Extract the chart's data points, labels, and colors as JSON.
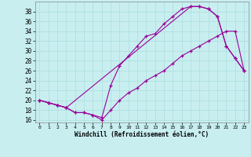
{
  "xlabel": "Windchill (Refroidissement éolien,°C)",
  "bg_color": "#c8eef0",
  "line_color": "#990099",
  "grid_color": "#aadddd",
  "ylim": [
    15.5,
    40
  ],
  "xlim": [
    -0.5,
    23.5
  ],
  "yticks": [
    16,
    18,
    20,
    22,
    24,
    26,
    28,
    30,
    32,
    34,
    36,
    38
  ],
  "xticks": [
    0,
    1,
    2,
    3,
    4,
    5,
    6,
    7,
    8,
    9,
    10,
    11,
    12,
    13,
    14,
    15,
    16,
    17,
    18,
    19,
    20,
    21,
    22,
    23
  ],
  "line1_x": [
    0,
    1,
    2,
    3,
    4,
    5,
    6,
    7,
    8,
    9,
    10,
    11,
    12,
    13,
    14,
    15,
    16,
    17,
    18,
    19,
    20,
    21,
    22,
    23
  ],
  "line1_y": [
    20,
    19.5,
    19,
    18.5,
    17.5,
    17.5,
    17,
    16,
    18,
    20,
    21.5,
    22.5,
    24,
    25,
    26,
    27.5,
    29,
    30,
    31,
    32,
    33,
    34,
    34,
    26
  ],
  "line2_x": [
    0,
    1,
    2,
    3,
    4,
    5,
    6,
    7,
    8,
    9,
    10,
    11,
    12,
    13,
    14,
    15,
    16,
    17,
    18,
    19,
    20,
    21,
    22,
    23
  ],
  "line2_y": [
    20,
    19.5,
    19,
    18.5,
    17.5,
    17.5,
    17,
    16.5,
    23,
    27,
    29,
    31,
    33,
    33.5,
    35.5,
    37,
    38.5,
    39,
    39,
    38.5,
    37,
    31,
    28.5,
    26
  ],
  "line3_x": [
    0,
    1,
    2,
    3,
    17,
    18,
    19,
    20,
    21,
    22,
    23
  ],
  "line3_y": [
    20,
    19.5,
    19,
    18.5,
    39,
    39,
    38.5,
    37,
    31,
    28.5,
    26
  ]
}
